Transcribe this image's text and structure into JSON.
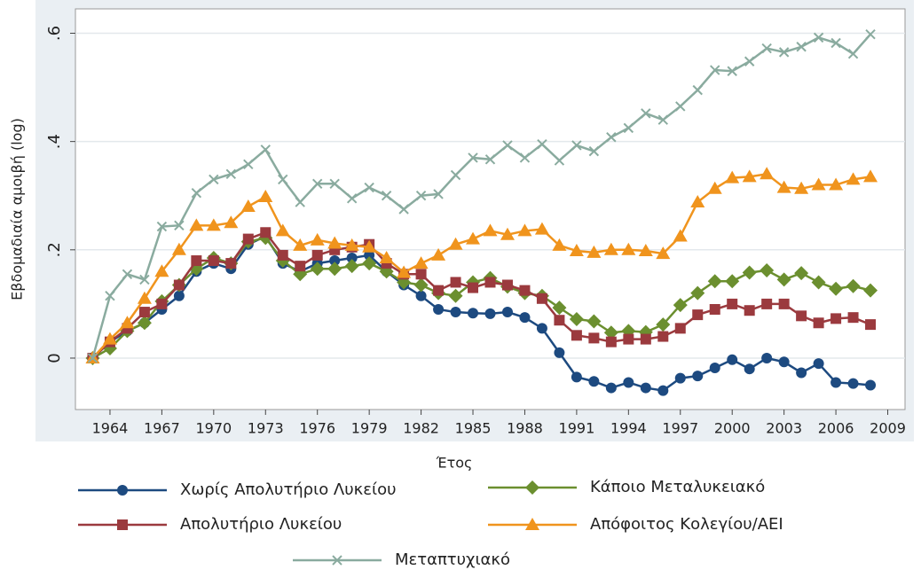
{
  "chart_data": {
    "type": "line",
    "xlabel": "Έτος",
    "ylabel": "Εβδομαδιαία αμοιβή (log)",
    "x": [
      1963,
      1964,
      1965,
      1966,
      1967,
      1968,
      1969,
      1970,
      1971,
      1972,
      1973,
      1974,
      1975,
      1976,
      1977,
      1978,
      1979,
      1980,
      1981,
      1982,
      1983,
      1984,
      1985,
      1986,
      1987,
      1988,
      1989,
      1990,
      1991,
      1992,
      1993,
      1994,
      1995,
      1996,
      1997,
      1998,
      1999,
      2000,
      2001,
      2002,
      2003,
      2004,
      2005,
      2006,
      2007,
      2008
    ],
    "xlim": [
      1962,
      2010
    ],
    "xticks": [
      1964,
      1967,
      1970,
      1973,
      1976,
      1979,
      1982,
      1985,
      1988,
      1991,
      1994,
      1997,
      2000,
      2003,
      2006,
      2009
    ],
    "ylim": [
      -0.095,
      0.645
    ],
    "yticks": [
      0,
      {
        "value": 0.2,
        "label": ".2"
      },
      {
        "value": 0.4,
        "label": ".4"
      },
      {
        "value": 0.6,
        "label": ".6"
      }
    ],
    "grid": true,
    "series": [
      {
        "name": "Χωρίς Απολυτήριο Λυκείου",
        "color": "#1d4a80",
        "marker": "circle",
        "values": [
          0,
          0.03,
          0.05,
          0.065,
          0.09,
          0.115,
          0.16,
          0.175,
          0.165,
          0.21,
          0.225,
          0.175,
          0.16,
          0.175,
          0.18,
          0.185,
          0.19,
          0.16,
          0.135,
          0.115,
          0.09,
          0.085,
          0.083,
          0.082,
          0.085,
          0.075,
          0.055,
          0.01,
          -0.035,
          -0.043,
          -0.055,
          -0.045,
          -0.055,
          -0.06,
          -0.037,
          -0.033,
          -0.018,
          -0.003,
          -0.02,
          0,
          -0.007,
          -0.027,
          -0.01,
          -0.045,
          -0.047,
          -0.05
        ]
      },
      {
        "name": "Κάποιο Μεταλυκειακό",
        "color": "#6b8f2f",
        "marker": "diamond",
        "values": [
          0,
          0.018,
          0.05,
          0.065,
          0.105,
          0.135,
          0.165,
          0.185,
          0.175,
          0.215,
          0.222,
          0.18,
          0.155,
          0.165,
          0.165,
          0.17,
          0.175,
          0.16,
          0.14,
          0.135,
          0.12,
          0.115,
          0.14,
          0.148,
          0.132,
          0.12,
          0.115,
          0.093,
          0.072,
          0.068,
          0.047,
          0.05,
          0.048,
          0.062,
          0.098,
          0.12,
          0.142,
          0.142,
          0.158,
          0.162,
          0.145,
          0.157,
          0.14,
          0.128,
          0.133,
          0.125
        ]
      },
      {
        "name": "Απολυτήριο Λυκείου",
        "color": "#9b3a3e",
        "marker": "square",
        "values": [
          0,
          0.03,
          0.055,
          0.085,
          0.1,
          0.135,
          0.18,
          0.18,
          0.175,
          0.22,
          0.232,
          0.19,
          0.17,
          0.19,
          0.2,
          0.205,
          0.21,
          0.175,
          0.155,
          0.155,
          0.125,
          0.14,
          0.13,
          0.14,
          0.135,
          0.125,
          0.11,
          0.07,
          0.042,
          0.037,
          0.03,
          0.035,
          0.035,
          0.04,
          0.055,
          0.08,
          0.09,
          0.1,
          0.088,
          0.1,
          0.1,
          0.078,
          0.065,
          0.073,
          0.075,
          0.062
        ]
      },
      {
        "name": "Απόφοιτος Κολεγίου/ΑΕΙ",
        "color": "#f0941d",
        "marker": "triangle",
        "values": [
          0,
          0.035,
          0.065,
          0.11,
          0.16,
          0.2,
          0.245,
          0.245,
          0.25,
          0.28,
          0.298,
          0.235,
          0.208,
          0.218,
          0.212,
          0.208,
          0.205,
          0.185,
          0.158,
          0.175,
          0.19,
          0.21,
          0.22,
          0.235,
          0.228,
          0.235,
          0.238,
          0.208,
          0.198,
          0.195,
          0.2,
          0.2,
          0.198,
          0.193,
          0.225,
          0.288,
          0.313,
          0.333,
          0.335,
          0.34,
          0.315,
          0.313,
          0.32,
          0.32,
          0.33,
          0.335
        ]
      },
      {
        "name": "Μεταπτυχιακό",
        "color": "#8aab9f",
        "marker": "x",
        "values": [
          0,
          0.115,
          0.155,
          0.145,
          0.243,
          0.245,
          0.305,
          0.33,
          0.34,
          0.358,
          0.385,
          0.33,
          0.288,
          0.322,
          0.322,
          0.295,
          0.315,
          0.3,
          0.275,
          0.3,
          0.303,
          0.338,
          0.37,
          0.367,
          0.393,
          0.37,
          0.395,
          0.365,
          0.393,
          0.382,
          0.408,
          0.425,
          0.452,
          0.44,
          0.465,
          0.495,
          0.532,
          0.53,
          0.548,
          0.572,
          0.565,
          0.575,
          0.592,
          0.582,
          0.562,
          0.598
        ]
      }
    ]
  }
}
